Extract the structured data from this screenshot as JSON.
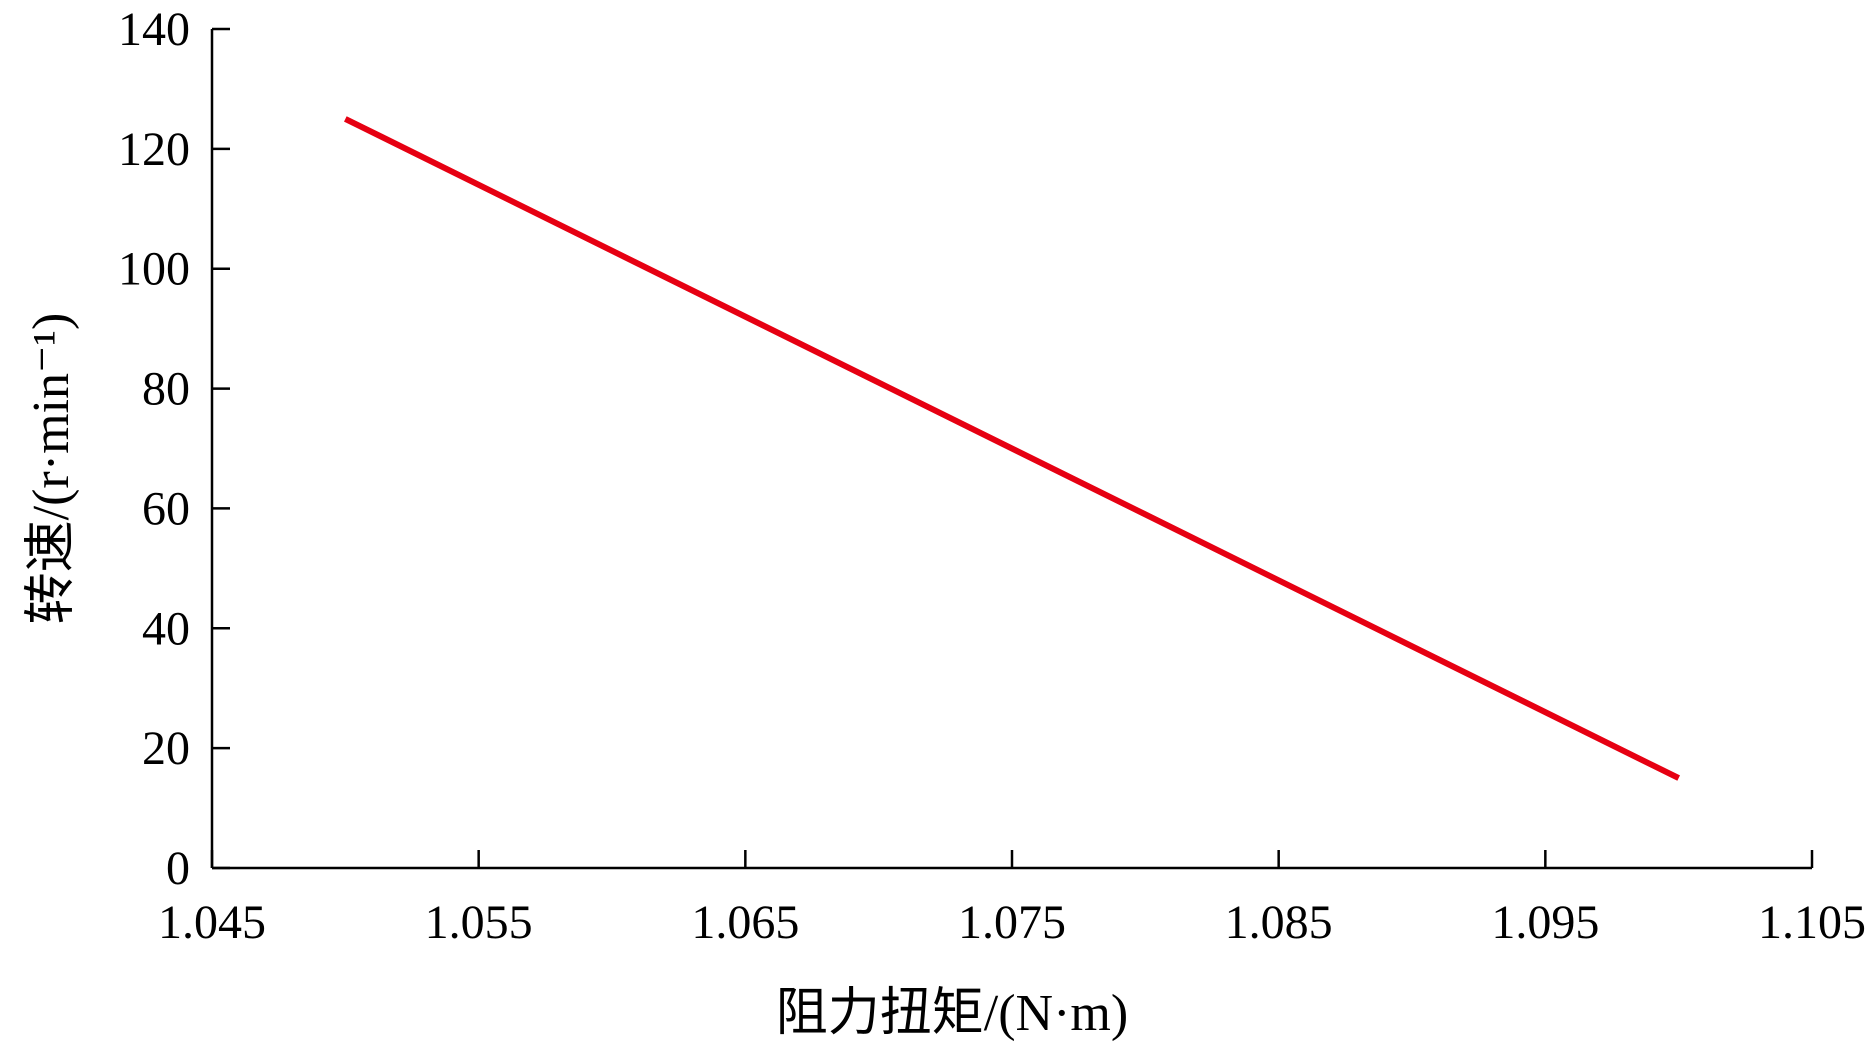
{
  "chart_data": {
    "type": "line",
    "title": "",
    "xlabel": "阻力扭矩/(N·m)",
    "ylabel": "转速/(r·min⁻¹)",
    "xlim": [
      1.045,
      1.105
    ],
    "ylim": [
      0,
      140
    ],
    "x_ticks": [
      1.045,
      1.055,
      1.065,
      1.075,
      1.085,
      1.095,
      1.105
    ],
    "x_tick_labels": [
      "1.045",
      "1.055",
      "1.065",
      "1.075",
      "1.085",
      "1.095",
      "1.105"
    ],
    "y_ticks": [
      0,
      20,
      40,
      60,
      80,
      100,
      120,
      140
    ],
    "y_tick_labels": [
      "0",
      "20",
      "40",
      "60",
      "80",
      "100",
      "120",
      "140"
    ],
    "grid": false,
    "legend": "none",
    "series": [
      {
        "color": "#e60012",
        "x": [
          1.05,
          1.1
        ],
        "y": [
          125,
          15
        ]
      }
    ]
  }
}
